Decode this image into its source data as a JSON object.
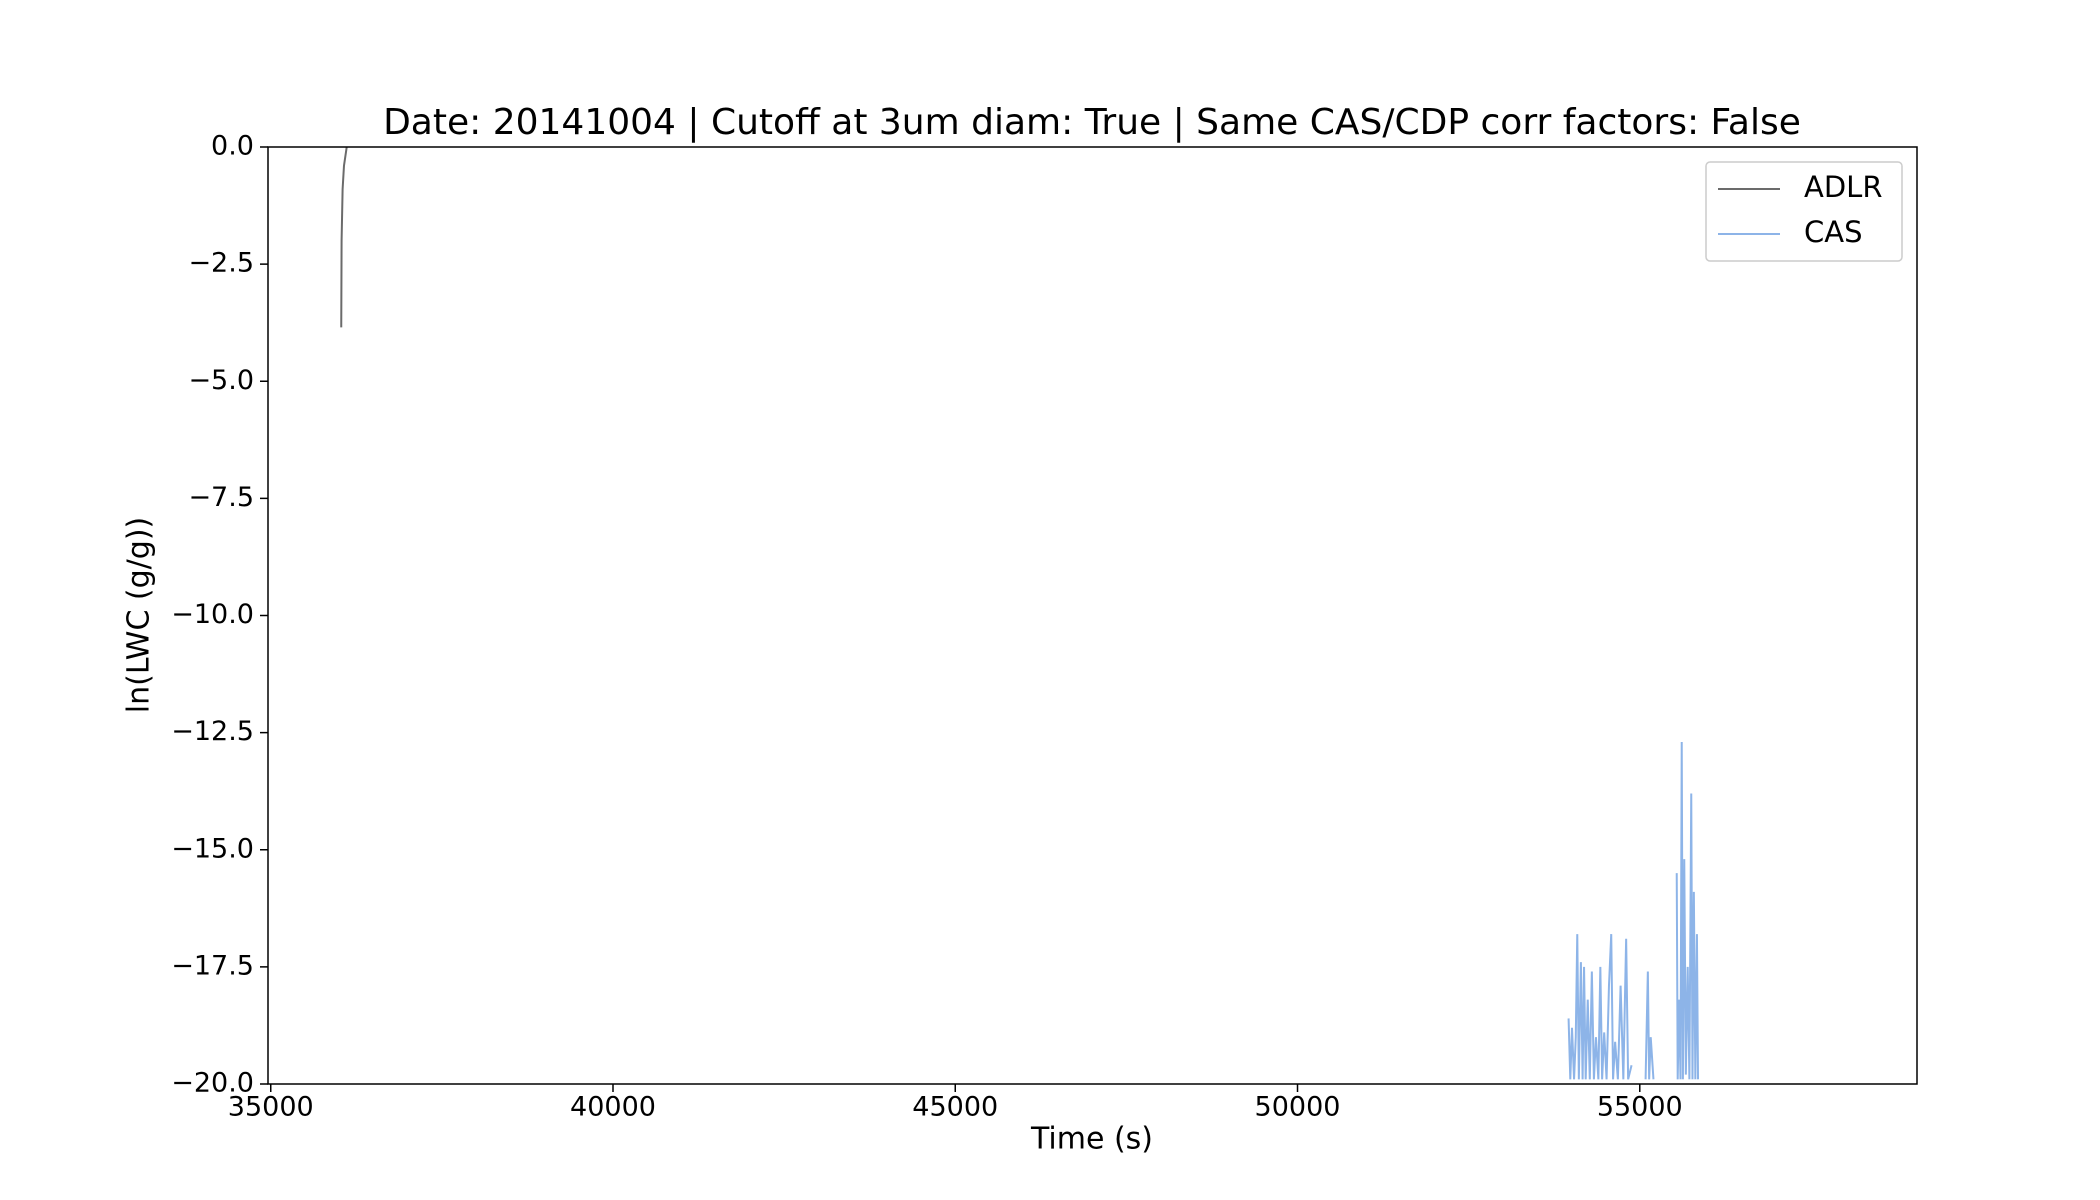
{
  "chart_data": {
    "type": "line",
    "title": "Date: 20141004 | Cutoff at 3um diam: True | Same CAS/CDP corr factors: False",
    "x_label": "Time (s)",
    "y_label": "ln(LWC (g/g))",
    "xlim": [
      34960,
      59050
    ],
    "ylim": [
      -20,
      0
    ],
    "xticks": [
      35000,
      40000,
      45000,
      50000,
      55000
    ],
    "yticks": [
      {
        "value": 0,
        "label": "0.0"
      },
      {
        "value": -2.5,
        "label": "−2.5"
      },
      {
        "value": -5,
        "label": "−5.0"
      },
      {
        "value": -7.5,
        "label": "−7.5"
      },
      {
        "value": -10,
        "label": "−10.0"
      },
      {
        "value": -12.5,
        "label": "−12.5"
      },
      {
        "value": -15,
        "label": "−15.0"
      },
      {
        "value": -17.5,
        "label": "−17.5"
      },
      {
        "value": -20,
        "label": "−20.0"
      }
    ],
    "grid": false,
    "legend": "upper right",
    "series": [
      {
        "name": "ADLR",
        "color": "#6b6b6b",
        "x": [
          36030,
          36035,
          36050,
          36070,
          36110
        ],
        "values": [
          -3.85,
          -2.0,
          -0.9,
          -0.4,
          0.0
        ]
      },
      {
        "name": "CAS",
        "color": "#8db4e8",
        "x": [
          53960,
          53985,
          54010,
          54040,
          54065,
          54087,
          54110,
          54140,
          54165,
          54186,
          54210,
          54240,
          54270,
          54300,
          54330,
          54360,
          54395,
          54424,
          54450,
          54480,
          54515,
          54550,
          54583,
          54610,
          54640,
          54680,
          54720,
          54760,
          54801,
          54830,
          54880,
          55000,
          55085,
          55118,
          55137,
          55160,
          55200,
          55400,
          55540,
          55554,
          55575,
          55595,
          55613,
          55630,
          55650,
          55673,
          55700,
          55725,
          55752,
          55770,
          55790,
          55812,
          55835,
          55851
        ],
        "values": [
          -18.6,
          -19.9,
          -18.8,
          -19.9,
          -19.0,
          -16.8,
          -19.9,
          -17.4,
          -19.9,
          -17.5,
          -19.9,
          -18.2,
          -19.9,
          -17.6,
          -19.9,
          -19.0,
          -19.9,
          -17.5,
          -19.9,
          -18.9,
          -19.9,
          -17.9,
          -16.8,
          -19.9,
          -19.1,
          -19.9,
          -17.9,
          -19.9,
          -16.9,
          -19.9,
          -19.6,
          null,
          -19.9,
          -17.6,
          -19.9,
          -19.0,
          -19.9,
          null,
          -15.5,
          -19.9,
          -18.2,
          -19.9,
          -12.7,
          -19.9,
          -15.2,
          -19.8,
          -17.5,
          -19.9,
          -13.8,
          -19.9,
          -15.9,
          -19.9,
          -16.8,
          -19.9
        ]
      }
    ]
  }
}
